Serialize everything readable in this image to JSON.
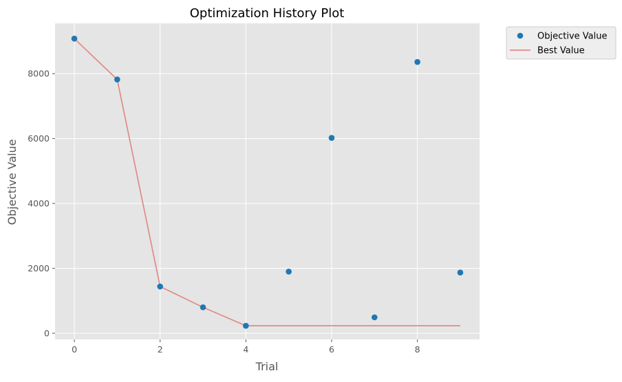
{
  "chart_data": {
    "type": "scatter",
    "title": "Optimization History Plot",
    "xlabel": "Trial",
    "ylabel": "Objective Value",
    "xlim": [
      -0.45,
      9.45
    ],
    "ylim": [
      -190,
      9550
    ],
    "xticks": [
      0,
      2,
      4,
      6,
      8
    ],
    "yticks": [
      0,
      2000,
      4000,
      6000,
      8000
    ],
    "grid": true,
    "legend_position": "outside-top-right",
    "series": [
      {
        "name": "Objective Value",
        "type": "scatter",
        "color": "#1f77b4",
        "x": [
          0,
          1,
          2,
          3,
          4,
          5,
          6,
          7,
          8,
          9
        ],
        "y": [
          9080,
          7820,
          1440,
          800,
          230,
          1900,
          6020,
          490,
          8360,
          1870
        ]
      },
      {
        "name": "Best Value",
        "type": "line",
        "color": "#e08a87",
        "x": [
          0,
          1,
          2,
          3,
          4,
          5,
          6,
          7,
          8,
          9
        ],
        "y": [
          9080,
          7820,
          1440,
          800,
          230,
          230,
          230,
          230,
          230,
          230
        ]
      }
    ]
  },
  "colors": {
    "plot_background": "#e5e5e5",
    "grid": "#ffffff",
    "marker": "#1f77b4",
    "best_line": "#e08a87"
  }
}
